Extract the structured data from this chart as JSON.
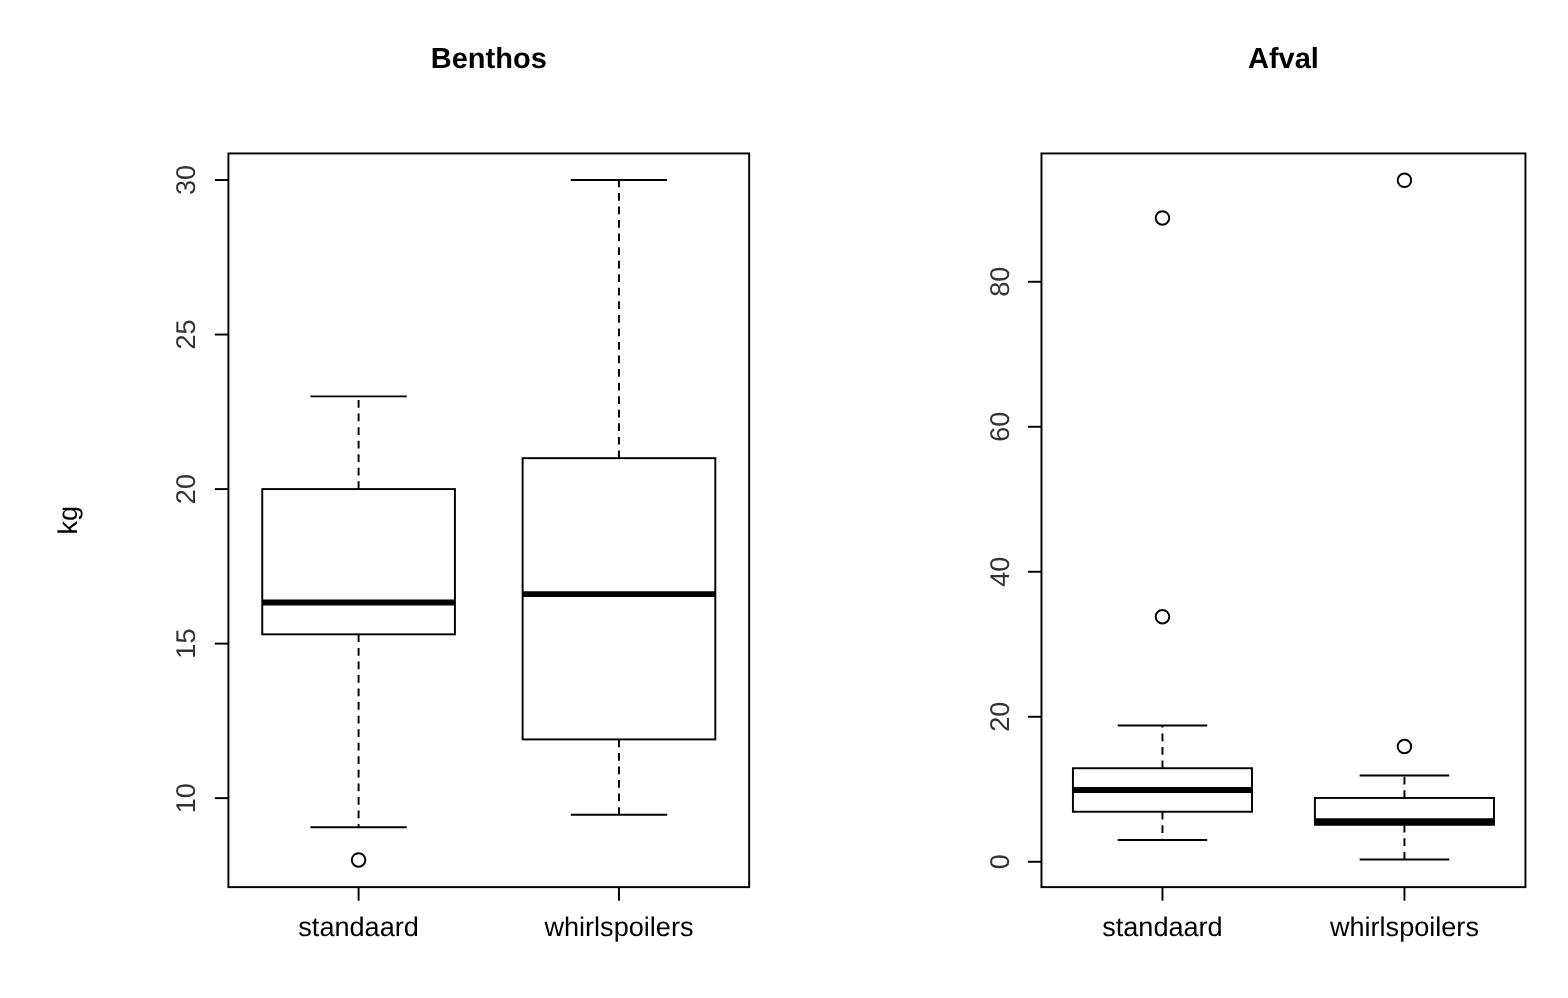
{
  "chart_data": [
    {
      "type": "box",
      "title": "Benthos",
      "ylabel": "kg",
      "categories": [
        "standaard",
        "whirlspoilers"
      ],
      "ylim": [
        7.12,
        30.86
      ],
      "yticks": [
        10,
        15,
        20,
        25,
        30
      ],
      "boxes": [
        {
          "low": 9.06,
          "q1": 15.3,
          "median": 16.33,
          "q3": 20,
          "high": 23,
          "outliers": [
            8
          ]
        },
        {
          "low": 9.46,
          "q1": 11.9,
          "median": 16.6,
          "q3": 21,
          "high": 30
        }
      ]
    },
    {
      "type": "box",
      "title": "Afval",
      "categories": [
        "standaard",
        "whirlspoilers"
      ],
      "ylim": [
        -3.5,
        97.7
      ],
      "yticks": [
        0,
        20,
        40,
        60,
        80
      ],
      "boxes": [
        {
          "low": 3,
          "q1": 6.9,
          "median": 9.9,
          "q3": 12.9,
          "high": 18.8,
          "outliers": [
            33.8,
            88.8
          ]
        },
        {
          "low": 0.3,
          "q1": 5.1,
          "median": 5.6,
          "q3": 8.8,
          "high": 11.9,
          "outliers": [
            15.9,
            94
          ]
        }
      ]
    }
  ]
}
